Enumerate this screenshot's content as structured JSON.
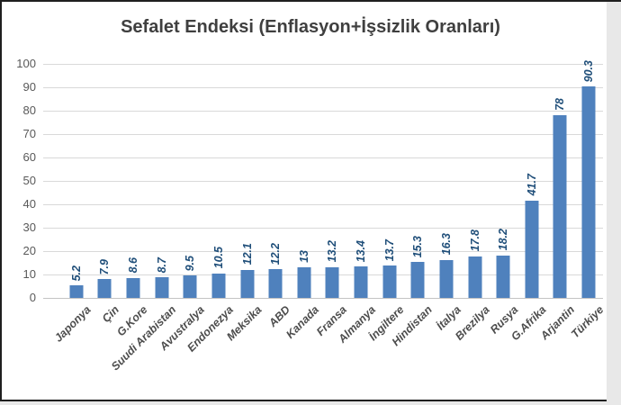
{
  "chart_data": {
    "type": "bar",
    "title": "Sefalet Endeksi (Enflasyon+İşsizlik Oranları)",
    "categories": [
      "Japonya",
      "Çin",
      "G.Kore",
      "Suudi Arabistan",
      "Avustralya",
      "Endonezya",
      "Meksika",
      "ABD",
      "Kanada",
      "Fransa",
      "Almanya",
      "İngiltere",
      "Hindistan",
      "İtalya",
      "Brezilya",
      "Rusya",
      "G.Afrika",
      "Arjantin",
      "Türkiye"
    ],
    "values": [
      5.2,
      7.9,
      8.6,
      8.7,
      9.5,
      10.5,
      12.1,
      12.2,
      13,
      13.2,
      13.4,
      13.7,
      15.3,
      16.3,
      17.8,
      18.2,
      41.7,
      78,
      90.3
    ],
    "value_labels": [
      "5.2",
      "7.9",
      "8.6",
      "8.7",
      "9.5",
      "10.5",
      "12.1",
      "12.2",
      "13",
      "13.2",
      "13.4",
      "13.7",
      "15.3",
      "16.3",
      "17.8",
      "18.2",
      "41.7",
      "78",
      "90.3"
    ],
    "xlabel": "",
    "ylabel": "",
    "ylim": [
      0,
      100
    ],
    "yticks": [
      0,
      10,
      20,
      30,
      40,
      50,
      60,
      70,
      80,
      90,
      100
    ],
    "grid": true,
    "legend": "none",
    "bar_color": "#4F81BD",
    "value_label_color": "#1F4E79",
    "axis_text_color": "#595959",
    "title_color": "#3F3F3F"
  }
}
